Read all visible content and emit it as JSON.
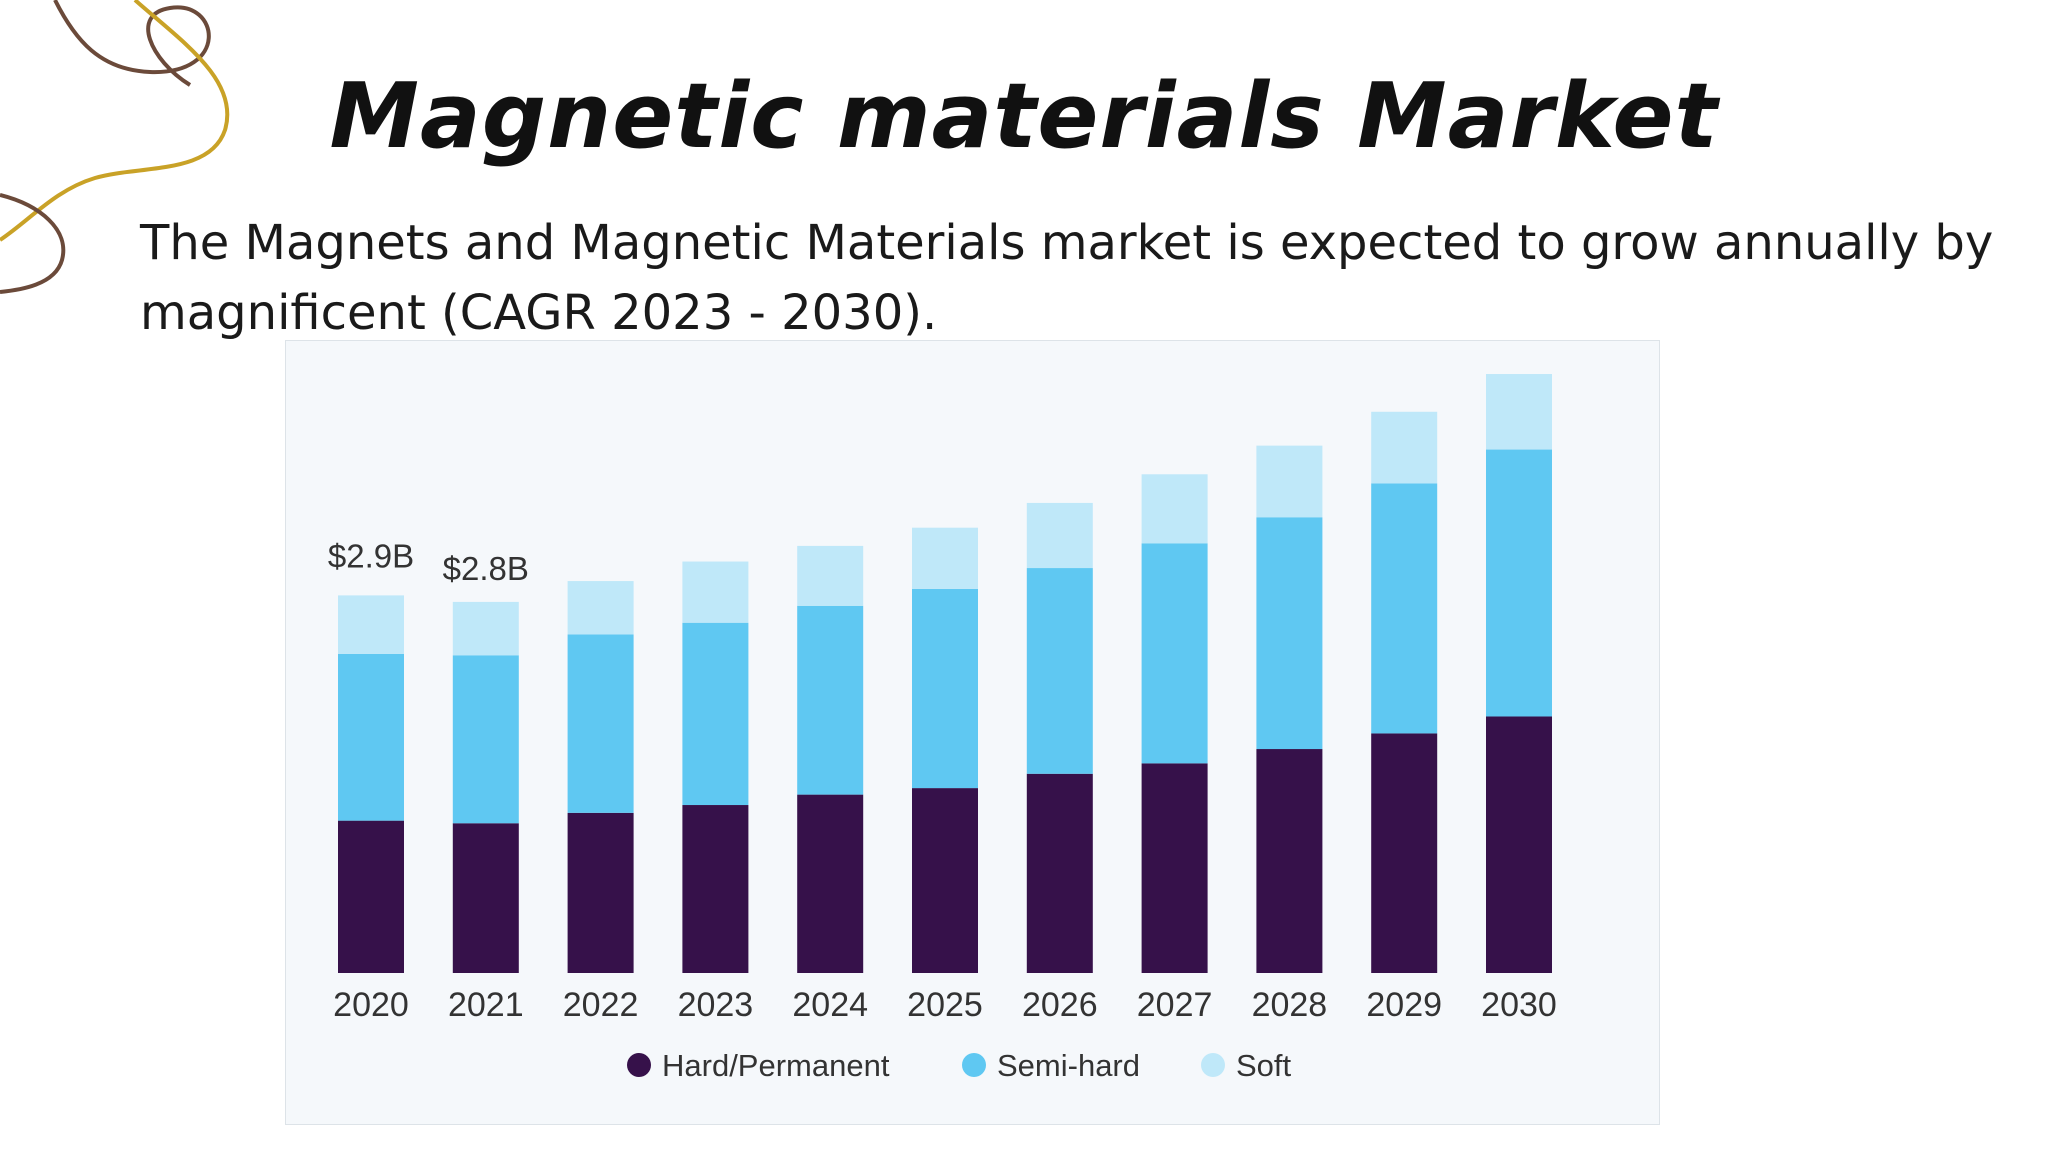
{
  "slide": {
    "title": "Magnetic materials Market",
    "subtitle": "The Magnets and Magnetic Materials market is expected to grow annually by magnificent (CAGR 2023 - 2030)."
  },
  "colors": {
    "hard": "#36114a",
    "semi": "#5fc8f2",
    "soft": "#bfe8f9",
    "deco_brown": "#6b4a3a",
    "deco_gold": "#c9a227"
  },
  "chart_data": {
    "type": "bar",
    "stacked": true,
    "categories": [
      "2020",
      "2021",
      "2022",
      "2023",
      "2024",
      "2025",
      "2026",
      "2027",
      "2028",
      "2029",
      "2030"
    ],
    "series": [
      {
        "name": "Hard/Permanent",
        "values": [
          1.17,
          1.15,
          1.23,
          1.29,
          1.37,
          1.42,
          1.53,
          1.61,
          1.72,
          1.84,
          1.97
        ]
      },
      {
        "name": "Semi-hard",
        "values": [
          1.28,
          1.29,
          1.37,
          1.4,
          1.45,
          1.53,
          1.58,
          1.69,
          1.78,
          1.92,
          2.05
        ]
      },
      {
        "name": "Soft",
        "values": [
          0.45,
          0.41,
          0.41,
          0.47,
          0.46,
          0.47,
          0.5,
          0.53,
          0.55,
          0.55,
          0.58
        ]
      }
    ],
    "data_labels": [
      {
        "category": "2020",
        "text": "$2.9B"
      },
      {
        "category": "2021",
        "text": "$2.8B"
      }
    ],
    "ylim": [
      0,
      4.7
    ],
    "grid": false,
    "legend_position": "bottom-center"
  }
}
